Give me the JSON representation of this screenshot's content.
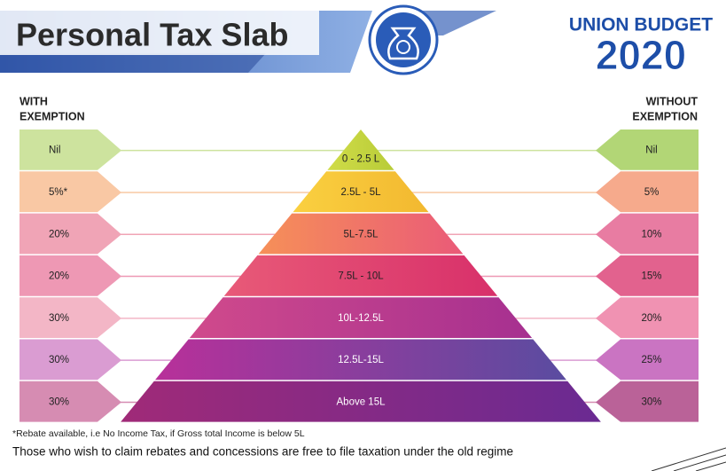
{
  "header": {
    "title": "Personal Tax Slab",
    "logo_top": "UNION BUDGET",
    "logo_year": "2020"
  },
  "left_heading": [
    "WITH",
    "EXEMPTION"
  ],
  "right_heading": [
    "WITHOUT",
    "EXEMPTION"
  ],
  "slabs": [
    {
      "income": "0 - 2.5 L",
      "with_exemption": "Nil",
      "without_exemption": "Nil"
    },
    {
      "income": "2.5L - 5L",
      "with_exemption": "5%*",
      "without_exemption": "5%"
    },
    {
      "income": "5L-7.5L",
      "with_exemption": "20%",
      "without_exemption": "10%"
    },
    {
      "income": "7.5L - 10L",
      "with_exemption": "20%",
      "without_exemption": "15%"
    },
    {
      "income": "10L-12.5L",
      "with_exemption": "30%",
      "without_exemption": "20%"
    },
    {
      "income": "12.5L-15L",
      "with_exemption": "30%",
      "without_exemption": "25%"
    },
    {
      "income": "Above 15L",
      "with_exemption": "30%",
      "without_exemption": "30%"
    }
  ],
  "footnote": "*Rebate available, i.e No Income Tax, if Gross total Income is below 5L",
  "note": "Those who wish to claim rebates and concessions are free to file taxation under the old regime"
}
